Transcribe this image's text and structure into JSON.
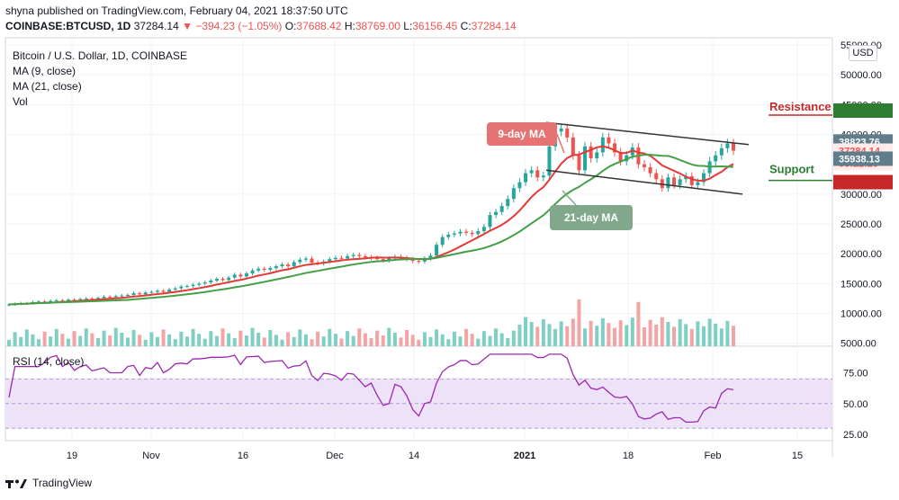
{
  "header": {
    "published": "shyna published on TradingView.com, February 04, 2021 18:37:50 UTC"
  },
  "symbol_line": {
    "symbol": "COINBASE:BTCUSD, 1D",
    "last": "37284.14",
    "change": "−394.23 (−1.05%)",
    "open_label": "O:",
    "open": "37688.42",
    "high_label": "H:",
    "high": "38769.00",
    "low_label": "L:",
    "low": "36156.45",
    "close_label": "C:",
    "close": "37284.14"
  },
  "legend": {
    "title": "Bitcoin / U.S. Dollar, 1D, COINBASE",
    "ma9": "MA (9, close)",
    "ma21": "MA (21, close)",
    "vol": "Vol"
  },
  "currency": "USD",
  "rsi_label": "RSI (14, close)",
  "footer": {
    "brand": "TradingView"
  },
  "colors": {
    "up": "#26a69a",
    "down": "#ef5350",
    "ma9": "#e53935",
    "ma21": "#43a047",
    "resistance": "#c62828",
    "support": "#2e7d32",
    "rsi": "#9c27b0",
    "rsi_band": "#ede2f7"
  },
  "chart_data": {
    "type": "candlestick",
    "price_axis": {
      "ticks": [
        "55000.00",
        "50000.00",
        "45000.00",
        "40000.00",
        "30000.00",
        "25000.00",
        "20000.00",
        "15000.00",
        "10000.00",
        "5000.00"
      ],
      "ylim": [
        4500,
        55000
      ]
    },
    "x_ticks": [
      "19",
      "Nov",
      "16",
      "Dec",
      "14",
      "2021",
      "18",
      "Feb",
      "15"
    ],
    "price_labels": [
      {
        "text": "44000.00",
        "value": 44000,
        "color": "#2e7d32"
      },
      {
        "text": "38823.76",
        "value": 38823.76,
        "color": "#ffffff"
      },
      {
        "text": "37284.14",
        "value": 37284.14,
        "color": "#ef5350"
      },
      {
        "text": "05:22:20",
        "value": 35200,
        "color": "#ef5350"
      },
      {
        "text": "35938.13",
        "value": 35938.13,
        "color": "#ffffff"
      },
      {
        "text": "32000.00",
        "value": 32000,
        "color": "#c62828"
      }
    ],
    "annotations": {
      "resistance": {
        "text": "Resistance",
        "level": 44000
      },
      "support": {
        "text": "Support",
        "level": 32000
      },
      "ma9_callout": "9-day MA",
      "ma21_callout": "21-day MA"
    },
    "rsi_axis": {
      "ticks": [
        "75.00",
        "50.00",
        "25.00"
      ],
      "band": [
        30,
        70
      ],
      "ylim": [
        20,
        95
      ]
    },
    "close_path": [
      11500,
      11600,
      11700,
      11700,
      11900,
      12000,
      11900,
      12100,
      12200,
      12100,
      12300,
      12200,
      12400,
      12500,
      12400,
      12600,
      12800,
      12700,
      12900,
      13000,
      13100,
      13400,
      13200,
      13500,
      13600,
      13800,
      13600,
      14000,
      14200,
      14500,
      14600,
      14800,
      15000,
      15200,
      15500,
      15800,
      15600,
      16000,
      16500,
      16200,
      16700,
      17200,
      17500,
      17300,
      17600,
      17900,
      18200,
      17900,
      18600,
      19000,
      19200,
      18500,
      18400,
      18700,
      19100,
      19300,
      19200,
      19600,
      19800,
      19600,
      19400,
      19300,
      19100,
      18900,
      19200,
      19500,
      19300,
      19100,
      18800,
      18700,
      19200,
      19700,
      21500,
      22800,
      23200,
      23400,
      23700,
      23500,
      23300,
      23800,
      24500,
      26500,
      27000,
      28000,
      29200,
      31000,
      32000,
      33500,
      34000,
      32800,
      33100,
      38000,
      40500,
      41000,
      39500,
      36500,
      34000,
      38000,
      36000,
      37000,
      39500,
      38500,
      37000,
      35500,
      36500,
      37800,
      35000,
      34500,
      33500,
      32500,
      31000,
      32800,
      31500,
      32500,
      33000,
      31500,
      32000,
      33500,
      35500,
      36500,
      37700,
      38500,
      37284
    ]
  }
}
